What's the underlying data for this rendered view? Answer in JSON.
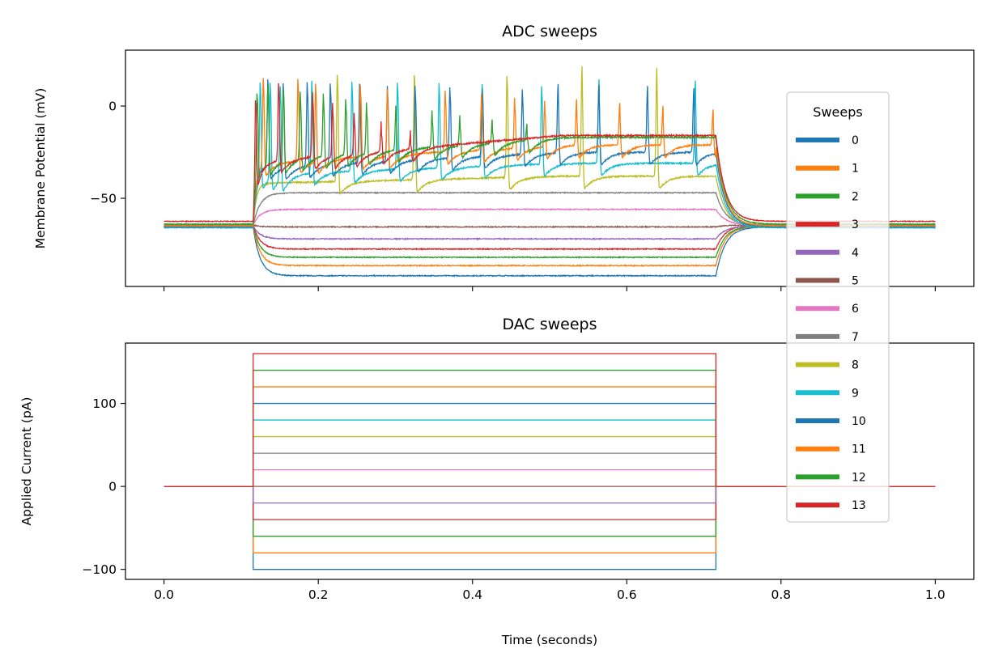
{
  "chart_data": [
    {
      "type": "line",
      "title": "ADC sweeps",
      "xlabel": "",
      "ylabel": "Membrane Potential (mV)",
      "xlim": [
        -0.05,
        1.05
      ],
      "ylim": [
        -97.8,
        30.3
      ],
      "xticks": [
        0.0,
        0.2,
        0.4,
        0.6,
        0.8,
        1.0
      ],
      "yticks": [
        0,
        -50
      ],
      "ytick_labels": [
        "0",
        "−50"
      ],
      "grid": false,
      "step_start": 0.1156,
      "step_end": 0.7156,
      "series": [
        {
          "name": "0",
          "color": "#1f77b4",
          "baseline": -65.5,
          "steady": -92
        },
        {
          "name": "1",
          "color": "#ff7f0e",
          "baseline": -65,
          "steady": -86.5
        },
        {
          "name": "2",
          "color": "#2ca02c",
          "baseline": -65,
          "steady": -82
        },
        {
          "name": "3",
          "color": "#d62728",
          "baseline": -64.5,
          "steady": -77.5
        },
        {
          "name": "4",
          "color": "#9467bd",
          "baseline": -65,
          "steady": -72
        },
        {
          "name": "5",
          "color": "#8c564b",
          "baseline": -64.5,
          "steady": -65.5
        },
        {
          "name": "6",
          "color": "#e377c2",
          "baseline": -64.5,
          "steady": -56
        },
        {
          "name": "7",
          "color": "#7f7f7f",
          "baseline": -64.5,
          "steady": -47
        },
        {
          "name": "8",
          "color": "#bcbd22",
          "baseline": -65.5,
          "trough_start": -42,
          "trough_end": -38,
          "peak_start": 23,
          "peak_end": 21,
          "spike_times": [
            0.225,
            0.325,
            0.445,
            0.542,
            0.639
          ]
        },
        {
          "name": "9",
          "color": "#17becf",
          "baseline": -66,
          "trough_start": -37,
          "trough_end": -31,
          "peak_start": 22,
          "peak_end": 14,
          "spike_times": [
            0.125,
            0.138,
            0.151,
            0.192,
            0.244,
            0.303,
            0.357,
            0.413,
            0.49,
            0.564,
            0.689
          ]
        },
        {
          "name": "10",
          "color": "#1f77b4",
          "baseline": -65.5,
          "trough_start": -33,
          "trough_end": -25,
          "peak_start": 20,
          "peak_end": 10,
          "spike_times": [
            0.135,
            0.155,
            0.186,
            0.216,
            0.254,
            0.29,
            0.326,
            0.371,
            0.413,
            0.465,
            0.511,
            0.564,
            0.627,
            0.687
          ]
        },
        {
          "name": "11",
          "color": "#ff7f0e",
          "baseline": -65,
          "trough_start": -31,
          "trough_end": -21,
          "peak_start": 22,
          "peak_end": -2,
          "spike_times": [
            0.129,
            0.174,
            0.197,
            0.255,
            0.29,
            0.365,
            0.412,
            0.455,
            0.494,
            0.535,
            0.591,
            0.647,
            0.712
          ]
        },
        {
          "name": "12",
          "color": "#2ca02c",
          "baseline": -64,
          "trough_start": -29,
          "trough_end": -17,
          "peak_start": 22,
          "peak_end": -8,
          "spike_times": [
            0.121,
            0.135,
            0.155,
            0.177,
            0.207,
            0.236,
            0.263,
            0.301,
            0.348,
            0.384,
            0.426,
            0.471
          ]
        },
        {
          "name": "13",
          "color": "#d62728",
          "baseline": -62.5,
          "trough_start": -30,
          "trough_end": -16,
          "peak_start": 24,
          "peak_end": -12,
          "spike_times": [
            0.119,
            0.149,
            0.193,
            0.219,
            0.247,
            0.282,
            0.32
          ]
        }
      ],
      "legend": {
        "title": "Sweeps",
        "position": "right"
      }
    },
    {
      "type": "line",
      "title": "DAC sweeps",
      "xlabel": "Time (seconds)",
      "ylabel": "Applied Current (pA)",
      "xlim": [
        -0.05,
        1.05
      ],
      "ylim": [
        -112,
        172.7
      ],
      "xticks": [
        0.0,
        0.2,
        0.4,
        0.6,
        0.8,
        1.0
      ],
      "xtick_labels": [
        "0.0",
        "0.2",
        "0.4",
        "0.6",
        "0.8",
        "1.0"
      ],
      "yticks": [
        100,
        0,
        -100
      ],
      "ytick_labels": [
        "100",
        "0",
        "−100"
      ],
      "grid": false,
      "step_start": 0.1156,
      "step_end": 0.7156,
      "holding": 0,
      "series_levels": [
        -100,
        -80,
        -60,
        -40,
        -20,
        0,
        20,
        40,
        60,
        80,
        100,
        120,
        140,
        160
      ]
    }
  ]
}
